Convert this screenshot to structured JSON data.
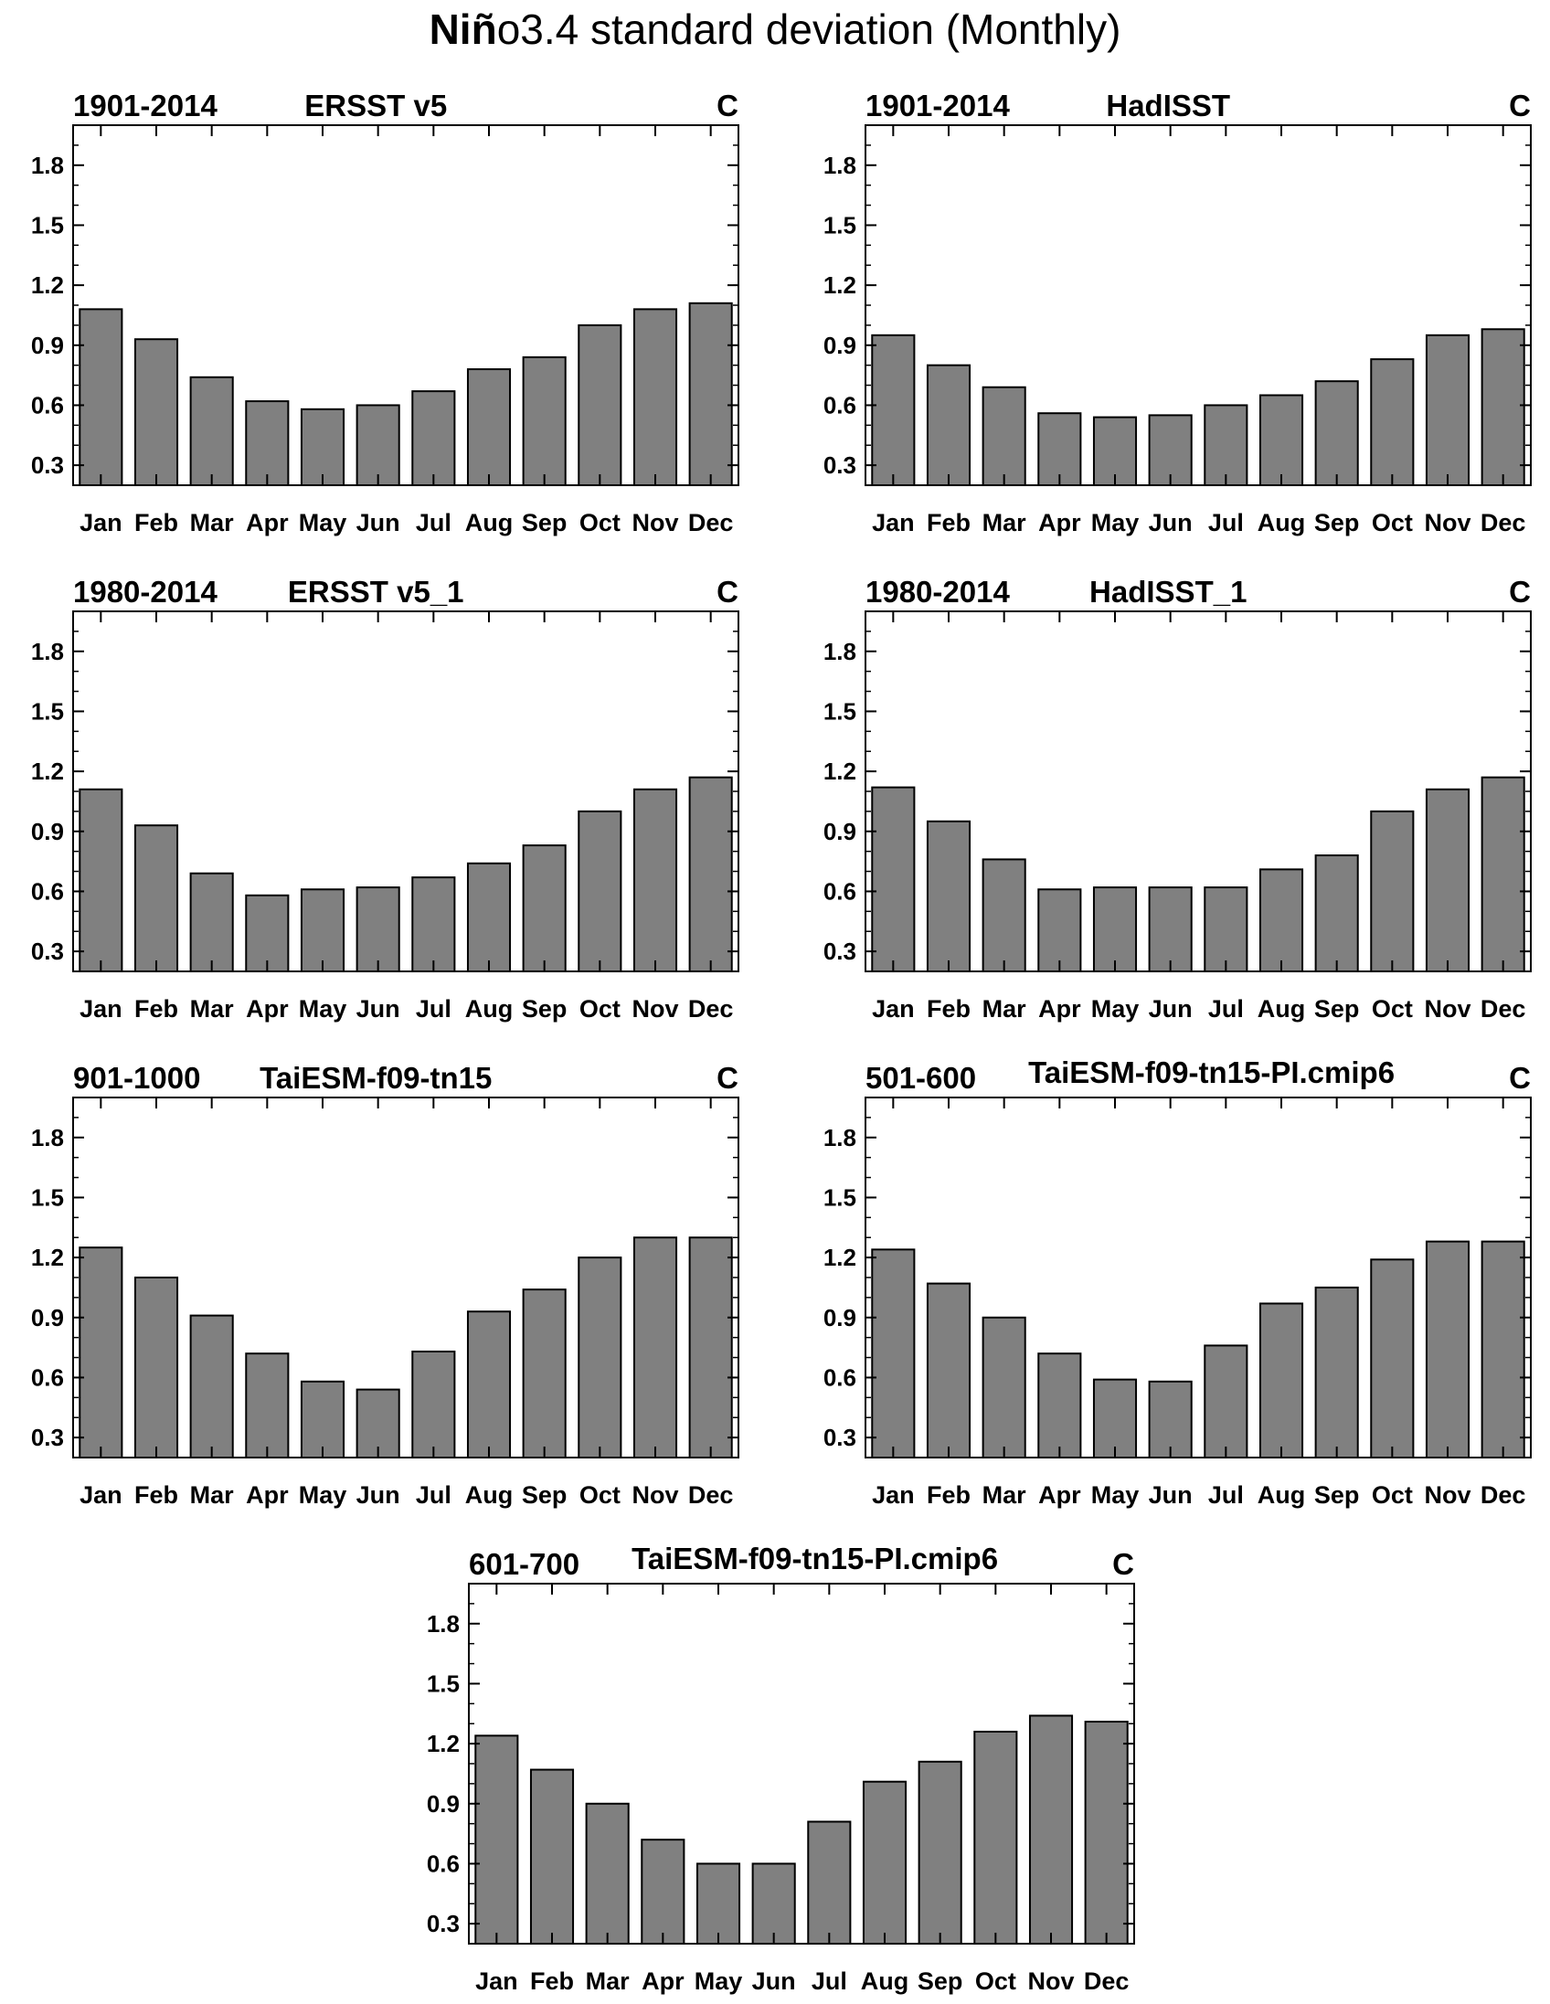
{
  "title_bold": "Niñ",
  "title_rest": "o3.4 standard deviation (Monthly)",
  "chart_data": [
    {
      "type": "bar",
      "period": "1901-2014",
      "title": "ERSST v5",
      "unit": "C",
      "categories": [
        "Jan",
        "Feb",
        "Mar",
        "Apr",
        "May",
        "Jun",
        "Jul",
        "Aug",
        "Sep",
        "Oct",
        "Nov",
        "Dec"
      ],
      "values": [
        1.08,
        0.93,
        0.74,
        0.62,
        0.58,
        0.6,
        0.67,
        0.78,
        0.84,
        1.0,
        1.08,
        1.11
      ],
      "ylim": [
        0.2,
        2.0
      ],
      "yticks": [
        "0.3",
        "0.6",
        "0.9",
        "1.2",
        "1.5",
        "1.8"
      ],
      "bar_color": "#808080"
    },
    {
      "type": "bar",
      "period": "1901-2014",
      "title": "HadISST",
      "unit": "C",
      "categories": [
        "Jan",
        "Feb",
        "Mar",
        "Apr",
        "May",
        "Jun",
        "Jul",
        "Aug",
        "Sep",
        "Oct",
        "Nov",
        "Dec"
      ],
      "values": [
        0.95,
        0.8,
        0.69,
        0.56,
        0.54,
        0.55,
        0.6,
        0.65,
        0.72,
        0.83,
        0.95,
        0.98
      ],
      "ylim": [
        0.2,
        2.0
      ],
      "yticks": [
        "0.3",
        "0.6",
        "0.9",
        "1.2",
        "1.5",
        "1.8"
      ],
      "bar_color": "#808080"
    },
    {
      "type": "bar",
      "period": "1980-2014",
      "title": "ERSST v5_1",
      "unit": "C",
      "categories": [
        "Jan",
        "Feb",
        "Mar",
        "Apr",
        "May",
        "Jun",
        "Jul",
        "Aug",
        "Sep",
        "Oct",
        "Nov",
        "Dec"
      ],
      "values": [
        1.11,
        0.93,
        0.69,
        0.58,
        0.61,
        0.62,
        0.67,
        0.74,
        0.83,
        1.0,
        1.11,
        1.17
      ],
      "ylim": [
        0.2,
        2.0
      ],
      "yticks": [
        "0.3",
        "0.6",
        "0.9",
        "1.2",
        "1.5",
        "1.8"
      ],
      "bar_color": "#808080"
    },
    {
      "type": "bar",
      "period": "1980-2014",
      "title": "HadISST_1",
      "unit": "C",
      "categories": [
        "Jan",
        "Feb",
        "Mar",
        "Apr",
        "May",
        "Jun",
        "Jul",
        "Aug",
        "Sep",
        "Oct",
        "Nov",
        "Dec"
      ],
      "values": [
        1.12,
        0.95,
        0.76,
        0.61,
        0.62,
        0.62,
        0.62,
        0.71,
        0.78,
        1.0,
        1.11,
        1.17
      ],
      "ylim": [
        0.2,
        2.0
      ],
      "yticks": [
        "0.3",
        "0.6",
        "0.9",
        "1.2",
        "1.5",
        "1.8"
      ],
      "bar_color": "#808080"
    },
    {
      "type": "bar",
      "period": "901-1000",
      "title": "TaiESM-f09-tn15",
      "unit": "C",
      "categories": [
        "Jan",
        "Feb",
        "Mar",
        "Apr",
        "May",
        "Jun",
        "Jul",
        "Aug",
        "Sep",
        "Oct",
        "Nov",
        "Dec"
      ],
      "values": [
        1.25,
        1.1,
        0.91,
        0.72,
        0.58,
        0.54,
        0.73,
        0.93,
        1.04,
        1.2,
        1.3,
        1.3
      ],
      "ylim": [
        0.2,
        2.0
      ],
      "yticks": [
        "0.3",
        "0.6",
        "0.9",
        "1.2",
        "1.5",
        "1.8"
      ],
      "bar_color": "#808080"
    },
    {
      "type": "bar",
      "period": "501-600",
      "title": "TaiESM-f09-tn15-PI.cmip6",
      "unit": "C",
      "categories": [
        "Jan",
        "Feb",
        "Mar",
        "Apr",
        "May",
        "Jun",
        "Jul",
        "Aug",
        "Sep",
        "Oct",
        "Nov",
        "Dec"
      ],
      "values": [
        1.24,
        1.07,
        0.9,
        0.72,
        0.59,
        0.58,
        0.76,
        0.97,
        1.05,
        1.19,
        1.28,
        1.28
      ],
      "ylim": [
        0.2,
        2.0
      ],
      "yticks": [
        "0.3",
        "0.6",
        "0.9",
        "1.2",
        "1.5",
        "1.8"
      ],
      "bar_color": "#808080"
    },
    {
      "type": "bar",
      "period": "601-700",
      "title": "TaiESM-f09-tn15-PI.cmip6",
      "unit": "C",
      "categories": [
        "Jan",
        "Feb",
        "Mar",
        "Apr",
        "May",
        "Jun",
        "Jul",
        "Aug",
        "Sep",
        "Oct",
        "Nov",
        "Dec"
      ],
      "values": [
        1.24,
        1.07,
        0.9,
        0.72,
        0.6,
        0.6,
        0.81,
        1.01,
        1.11,
        1.26,
        1.34,
        1.31
      ],
      "ylim": [
        0.2,
        2.0
      ],
      "yticks": [
        "0.3",
        "0.6",
        "0.9",
        "1.2",
        "1.5",
        "1.8"
      ],
      "bar_color": "#808080"
    }
  ]
}
